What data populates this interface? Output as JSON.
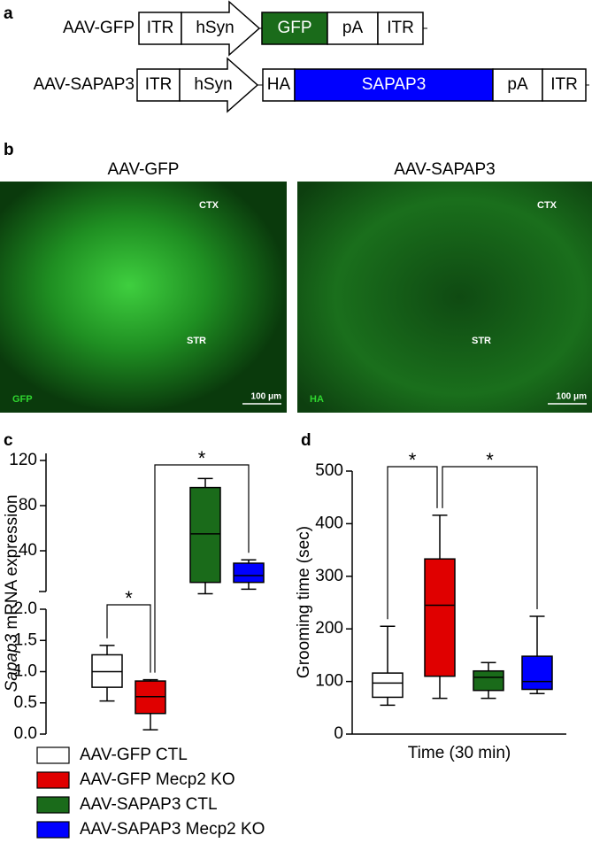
{
  "panel_a": {
    "label": "a",
    "constructs": [
      {
        "name": "AAV-GFP",
        "elements": [
          "ITR",
          "hSyn",
          "GFP",
          "pA",
          "ITR"
        ]
      },
      {
        "name": "AAV-SAPAP3",
        "elements": [
          "ITR",
          "hSyn",
          "HA",
          "SAPAP3",
          "pA",
          "ITR"
        ]
      }
    ]
  },
  "panel_b": {
    "label": "b",
    "images": [
      {
        "title": "AAV-GFP",
        "marker": "GFP",
        "regions": [
          "CTX",
          "STR"
        ],
        "scale_bar": "100 μm"
      },
      {
        "title": "AAV-SAPAP3",
        "marker": "HA",
        "regions": [
          "CTX",
          "STR"
        ],
        "scale_bar": "100 μm"
      }
    ]
  },
  "chart_data": [
    {
      "type": "box",
      "panel_label": "c",
      "ylabel": [
        "Sapap3",
        " mRNA expression"
      ],
      "ylim": [
        0,
        2.0
      ],
      "yticks": [
        {
          "value": 0,
          "label": "0.0"
        },
        0.5,
        {
          "value": 1,
          "label": "1.0"
        },
        1.5,
        {
          "value": 2,
          "label": "2.0"
        }
      ],
      "ylim_upper": [
        0,
        120
      ],
      "yticks_upper": [
        40,
        80,
        120
      ],
      "significance": [
        "*",
        "*"
      ],
      "series": [
        {
          "name": "AAV-GFP CTL",
          "color": "#ffffff",
          "values": [
            0.53,
            0.75,
            1.0,
            1.27,
            1.42
          ]
        },
        {
          "name": "AAV-GFP Mecp2 KO",
          "color": "#e00000",
          "values": [
            0.07,
            0.33,
            0.6,
            0.85,
            0.87
          ]
        },
        {
          "name": "AAV-SAPAP3 CTL",
          "color": "#1a6b1a",
          "axis": "upper",
          "values": [
            2,
            12,
            55,
            96,
            104
          ]
        },
        {
          "name": "AAV-SAPAP3 Mecp2 KO",
          "color": "#0000ff",
          "axis": "upper",
          "values": [
            6,
            12,
            18,
            29,
            32
          ]
        }
      ]
    },
    {
      "type": "box",
      "panel_label": "d",
      "ylabel": "Grooming time (sec)",
      "xlabel": "Time (30 min)",
      "ylim": [
        0,
        500
      ],
      "yticks": [
        0,
        100,
        200,
        300,
        400,
        500
      ],
      "significance": [
        "*",
        "*"
      ],
      "series": [
        {
          "color": "#ffffff",
          "values": [
            55,
            70,
            97,
            116,
            205
          ]
        },
        {
          "color": "#e00000",
          "values": [
            68,
            110,
            245,
            333,
            416
          ]
        },
        {
          "color": "#1a6b1a",
          "values": [
            68,
            83,
            108,
            120,
            136
          ]
        },
        {
          "color": "#0000ff",
          "values": [
            77,
            85,
            100,
            148,
            224
          ]
        }
      ]
    }
  ]
}
